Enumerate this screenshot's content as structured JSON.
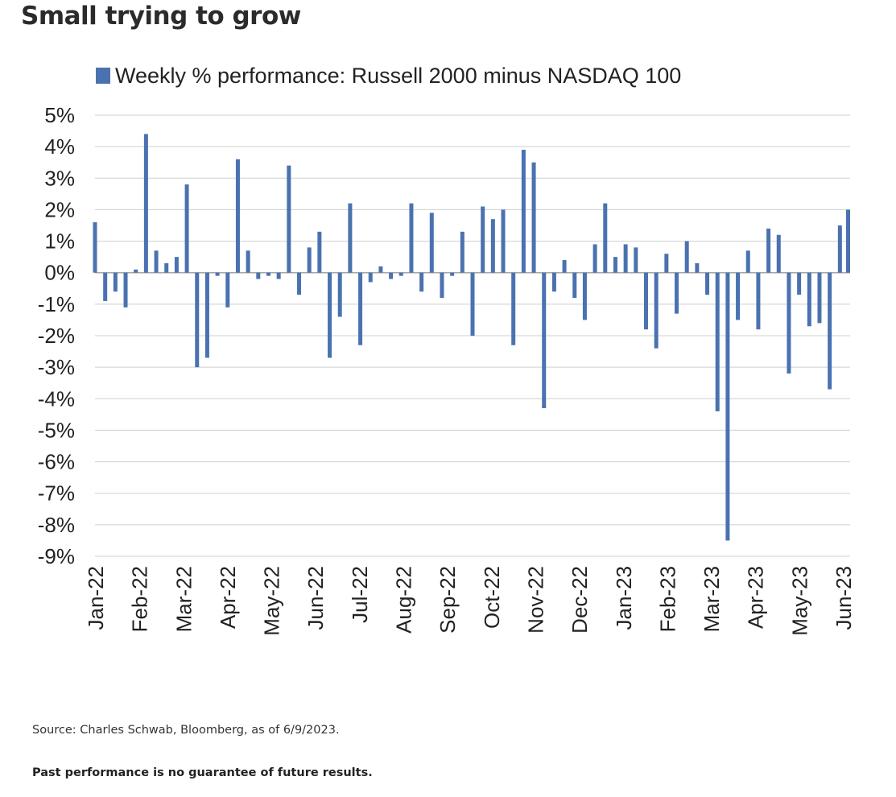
{
  "page": {
    "title": "Small trying to grow",
    "source": "Source: Charles Schwab, Bloomberg, as of 6/9/2023.",
    "disclaimer": "Past performance is no guarantee of future results."
  },
  "colors": {
    "bar": "#4a72b0",
    "grid": "#cfcfcf",
    "baseline": "#a6a6a6"
  },
  "chart_data": {
    "type": "bar",
    "series": [
      {
        "name": "Weekly % performance: Russell 2000 minus NASDAQ 100",
        "values": [
          1.6,
          -0.9,
          -0.6,
          -1.1,
          0.1,
          4.4,
          0.7,
          0.3,
          0.5,
          2.8,
          -3.0,
          -2.7,
          -0.1,
          -1.1,
          3.6,
          0.7,
          -0.2,
          -0.1,
          -0.2,
          3.4,
          -0.7,
          0.8,
          1.3,
          -2.7,
          -1.4,
          2.2,
          -2.3,
          -0.3,
          0.2,
          -0.2,
          -0.1,
          2.2,
          -0.6,
          1.9,
          -0.8,
          -0.1,
          1.3,
          -2.0,
          2.1,
          1.7,
          2.0,
          -2.3,
          3.9,
          3.5,
          -4.3,
          -0.6,
          0.4,
          -0.8,
          -1.5,
          0.9,
          2.2,
          0.5,
          0.9,
          0.8,
          -1.8,
          -2.4,
          0.6,
          -1.3,
          1.0,
          0.3,
          -0.7,
          -4.4,
          -8.5,
          -1.5,
          0.7,
          -1.8,
          1.4,
          1.2,
          -3.2,
          -0.7,
          -1.7,
          -1.6,
          -3.7,
          1.5,
          2.0
        ]
      }
    ],
    "x_tick_labels": [
      "Jan-22",
      "Feb-22",
      "Mar-22",
      "Apr-22",
      "May-22",
      "Jun-22",
      "Jul-22",
      "Aug-22",
      "Sep-22",
      "Oct-22",
      "Nov-22",
      "Dec-22",
      "Jan-23",
      "Feb-23",
      "Mar-23",
      "Apr-23",
      "May-23",
      "Jun-23"
    ],
    "y_ticks": [
      "5%",
      "4%",
      "3%",
      "2%",
      "1%",
      "0%",
      "-1%",
      "-2%",
      "-3%",
      "-4%",
      "-5%",
      "-6%",
      "-7%",
      "-8%",
      "-9%"
    ],
    "ylim": [
      -9,
      5
    ],
    "grid": true,
    "legend_position": "top-left"
  }
}
